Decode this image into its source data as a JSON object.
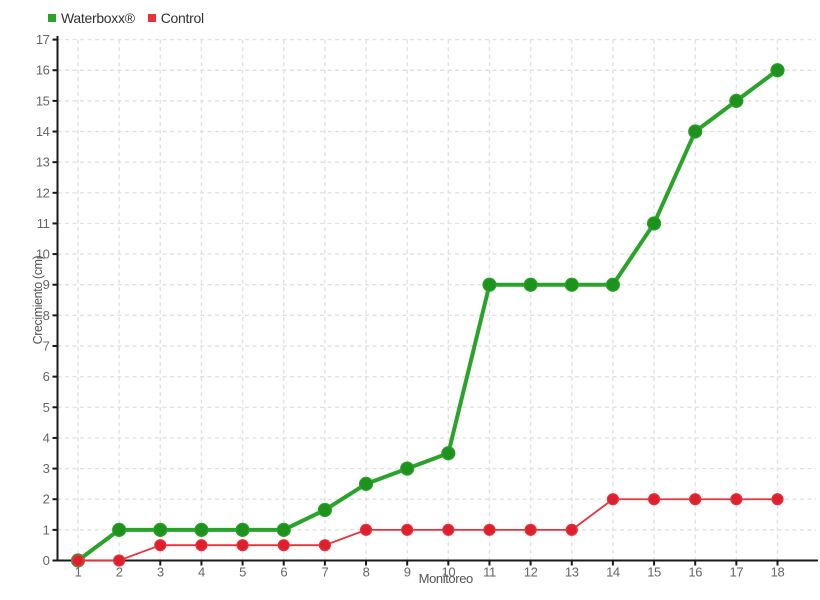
{
  "chart_data": {
    "type": "line",
    "title": "",
    "xlabel": "Monitoreo",
    "ylabel": "Crecimiento (cm)",
    "x": [
      1,
      2,
      3,
      4,
      5,
      6,
      7,
      8,
      9,
      10,
      11,
      12,
      13,
      14,
      15,
      16,
      17,
      18
    ],
    "series": [
      {
        "name": "Waterboxx®",
        "color": "#2aa32a",
        "marker_color": "#1d921d",
        "line_width": 4,
        "marker_radius": 6.5,
        "values": [
          0,
          1,
          1,
          1,
          1,
          1,
          1.65,
          2.5,
          3,
          3.5,
          9,
          9,
          9,
          9,
          11,
          14,
          15,
          16
        ]
      },
      {
        "name": "Control",
        "color": "#e8333c",
        "marker_color": "#de1f2e",
        "line_width": 1.8,
        "marker_radius": 5.5,
        "values": [
          0,
          0,
          0.5,
          0.5,
          0.5,
          0.5,
          0.5,
          1,
          1,
          1,
          1,
          1,
          1,
          2,
          2,
          2,
          2,
          2
        ]
      }
    ],
    "xlim": [
      1,
      18
    ],
    "ylim": [
      0,
      17
    ],
    "y_tick_step": 1,
    "grid": "dashed",
    "legend_position": "top-left",
    "background_color": "#ffffff",
    "grid_color": "#e2e2e2",
    "axis_color": "#1a1a1a",
    "tick_label_color": "#666666",
    "axis_title_color": "#555555"
  }
}
